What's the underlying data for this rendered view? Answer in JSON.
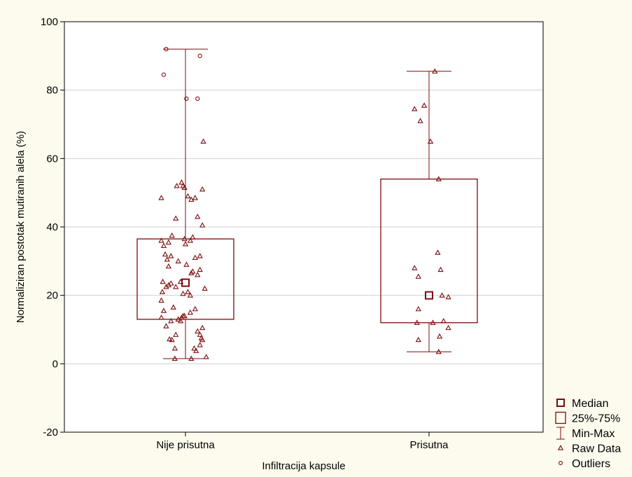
{
  "chart_data": {
    "type": "box",
    "xlabel": "Infiltracija kapsule",
    "ylabel": "Normaliziran postotak mutiranih alela (%)",
    "ylim": [
      -20,
      100
    ],
    "yticks": [
      -20,
      0,
      20,
      40,
      60,
      80,
      100
    ],
    "grid": true,
    "legend_position": "bottom-right",
    "categories": [
      "Nije prisutna",
      "Prisutna"
    ],
    "colors": {
      "box": "#7b0c0c",
      "background": "#fdfbee",
      "plot_area": "#ffffff",
      "grid": "#d0d0d0"
    },
    "legend": [
      {
        "label": "Median",
        "symbol": "median"
      },
      {
        "label": "25%-75%",
        "symbol": "box"
      },
      {
        "label": "Min-Max",
        "symbol": "whisker"
      },
      {
        "label": "Raw Data",
        "symbol": "triangle"
      },
      {
        "label": "Outliers",
        "symbol": "circle"
      }
    ],
    "boxes": [
      {
        "category": "Nije prisutna",
        "median": 23.7,
        "q1": 13.0,
        "q3": 36.5,
        "min": 1.5,
        "max": 92.0,
        "raw": [
          [
            -0.5,
            13.5
          ],
          [
            -0.4,
            11.0
          ],
          [
            -0.33,
            7.2
          ],
          [
            -0.28,
            7.0
          ],
          [
            -0.22,
            4.5
          ],
          [
            -0.3,
            12.5
          ],
          [
            -0.2,
            8.5
          ],
          [
            -0.15,
            13.0
          ],
          [
            -0.1,
            12.5
          ],
          [
            -0.08,
            13.5
          ],
          [
            -0.05,
            14.0
          ],
          [
            -0.02,
            14.0
          ],
          [
            0.1,
            15.0
          ],
          [
            0.2,
            16.0
          ],
          [
            0.25,
            9.5
          ],
          [
            0.3,
            8.5
          ],
          [
            0.33,
            7.5
          ],
          [
            0.35,
            7.0
          ],
          [
            0.35,
            10.5
          ],
          [
            0.3,
            5.5
          ],
          [
            0.18,
            4.5
          ],
          [
            0.22,
            3.8
          ],
          [
            0.12,
            1.5
          ],
          [
            -0.22,
            1.5
          ],
          [
            0.43,
            2.0
          ],
          [
            -0.45,
            15.5
          ],
          [
            -0.5,
            18.5
          ],
          [
            -0.48,
            21.0
          ],
          [
            -0.4,
            22.5
          ],
          [
            -0.35,
            23.0
          ],
          [
            -0.3,
            23.5
          ],
          [
            -0.47,
            24.0
          ],
          [
            -0.2,
            22.5
          ],
          [
            -0.1,
            24.0
          ],
          [
            0.05,
            21.0
          ],
          [
            0.1,
            20.0
          ],
          [
            -0.05,
            20.5
          ],
          [
            -0.25,
            16.5
          ],
          [
            0.12,
            26.5
          ],
          [
            0.15,
            27.0
          ],
          [
            0.25,
            26.0
          ],
          [
            0.3,
            27.5
          ],
          [
            0.4,
            22.0
          ],
          [
            -0.35,
            28.5
          ],
          [
            -0.38,
            30.5
          ],
          [
            -0.3,
            31.5
          ],
          [
            -0.15,
            30.0
          ],
          [
            0.02,
            29.0
          ],
          [
            0.2,
            31.0
          ],
          [
            0.3,
            31.5
          ],
          [
            -0.42,
            32.0
          ],
          [
            -0.45,
            34.5
          ],
          [
            -0.5,
            36.0
          ],
          [
            -0.35,
            35.5
          ],
          [
            -0.28,
            37.5
          ],
          [
            0.0,
            35.0
          ],
          [
            0.1,
            36.0
          ],
          [
            -0.02,
            36.5
          ],
          [
            0.15,
            37.0
          ],
          [
            0.25,
            43.0
          ],
          [
            0.35,
            40.5
          ],
          [
            -0.2,
            42.5
          ],
          [
            -0.5,
            48.5
          ],
          [
            0.05,
            49.0
          ],
          [
            0.12,
            48.0
          ],
          [
            0.2,
            48.5
          ],
          [
            0.35,
            51.0
          ],
          [
            -0.18,
            52.0
          ],
          [
            -0.08,
            53.0
          ],
          [
            -0.05,
            52.0
          ],
          [
            0.37,
            65.0
          ],
          [
            -0.02,
            51.5
          ]
        ],
        "outliers": [
          [
            -0.4,
            92.0
          ],
          [
            0.3,
            90.0
          ],
          [
            -0.45,
            84.5
          ],
          [
            0.02,
            77.5
          ],
          [
            0.25,
            77.5
          ]
        ]
      },
      {
        "category": "Prisutna",
        "median": 20.0,
        "q1": 12.0,
        "q3": 54.0,
        "min": 3.5,
        "max": 85.5,
        "raw": [
          [
            0.12,
            85.5
          ],
          [
            -0.3,
            74.5
          ],
          [
            -0.18,
            71.0
          ],
          [
            -0.1,
            75.5
          ],
          [
            0.03,
            65.0
          ],
          [
            0.2,
            54.0
          ],
          [
            0.18,
            32.5
          ],
          [
            0.24,
            27.5
          ],
          [
            -0.3,
            28.0
          ],
          [
            -0.22,
            25.5
          ],
          [
            0.27,
            20.0
          ],
          [
            0.4,
            19.5
          ],
          [
            -0.22,
            16.0
          ],
          [
            -0.25,
            12.0
          ],
          [
            0.08,
            12.0
          ],
          [
            0.3,
            12.5
          ],
          [
            0.4,
            10.5
          ],
          [
            0.22,
            8.0
          ],
          [
            -0.22,
            7.0
          ],
          [
            0.2,
            3.5
          ]
        ],
        "outliers": []
      }
    ]
  }
}
